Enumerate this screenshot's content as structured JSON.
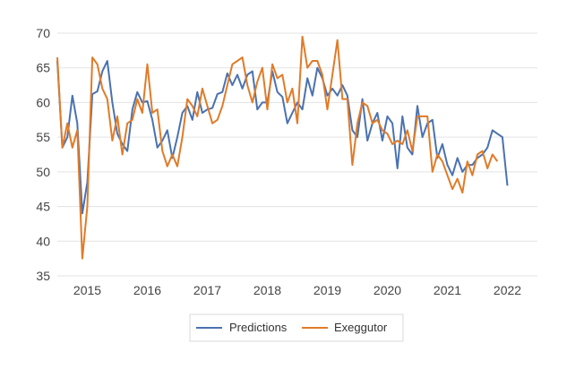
{
  "chart_data": {
    "type": "line",
    "title": "",
    "xlabel": "",
    "ylabel": "",
    "ylim": [
      35,
      70
    ],
    "yticks": [
      35,
      40,
      45,
      50,
      55,
      60,
      65,
      70
    ],
    "xlim": [
      "2014-07",
      "2022-07"
    ],
    "xtick_labels": [
      "2015",
      "2016",
      "2017",
      "2018",
      "2019",
      "2020",
      "2021",
      "2022"
    ],
    "grid": true,
    "legend_position": "bottom",
    "colors": {
      "Predictions": "#4a72b0",
      "Exeggutor": "#e07b28"
    },
    "series": [
      {
        "name": "Predictions",
        "color": "#4a72b0",
        "points": [
          [
            "2014-07",
            66
          ],
          [
            "2014-08",
            53.5
          ],
          [
            "2014-09",
            55
          ],
          [
            "2014-10",
            61
          ],
          [
            "2014-11",
            57
          ],
          [
            "2014-12",
            44
          ],
          [
            "2015-01",
            48.5
          ],
          [
            "2015-02",
            61.2
          ],
          [
            "2015-03",
            61.6
          ],
          [
            "2015-04",
            64.5
          ],
          [
            "2015-05",
            66
          ],
          [
            "2015-06",
            60
          ],
          [
            "2015-07",
            55.5
          ],
          [
            "2015-08",
            54
          ],
          [
            "2015-09",
            53
          ],
          [
            "2015-10",
            59
          ],
          [
            "2015-11",
            61.5
          ],
          [
            "2015-12",
            60
          ],
          [
            "2016-01",
            60.2
          ],
          [
            "2016-02",
            57.5
          ],
          [
            "2016-03",
            53.5
          ],
          [
            "2016-04",
            54.5
          ],
          [
            "2016-05",
            56
          ],
          [
            "2016-06",
            52
          ],
          [
            "2016-07",
            55
          ],
          [
            "2016-08",
            58.5
          ],
          [
            "2016-09",
            59.5
          ],
          [
            "2016-10",
            57.5
          ],
          [
            "2016-11",
            61.5
          ],
          [
            "2016-12",
            58.5
          ],
          [
            "2017-01",
            59
          ],
          [
            "2017-02",
            59.2
          ],
          [
            "2017-03",
            61.2
          ],
          [
            "2017-04",
            61.5
          ],
          [
            "2017-05",
            64.2
          ],
          [
            "2017-06",
            62.5
          ],
          [
            "2017-07",
            64
          ],
          [
            "2017-08",
            62
          ],
          [
            "2017-09",
            64
          ],
          [
            "2017-10",
            64.5
          ],
          [
            "2017-11",
            59
          ],
          [
            "2017-12",
            60
          ],
          [
            "2018-01",
            60
          ],
          [
            "2018-02",
            64.5
          ],
          [
            "2018-03",
            61.5
          ],
          [
            "2018-04",
            60.8
          ],
          [
            "2018-05",
            57
          ],
          [
            "2018-06",
            58.5
          ],
          [
            "2018-07",
            60
          ],
          [
            "2018-08",
            59
          ],
          [
            "2018-09",
            63.5
          ],
          [
            "2018-10",
            61
          ],
          [
            "2018-11",
            65
          ],
          [
            "2018-12",
            63.5
          ],
          [
            "2019-01",
            61
          ],
          [
            "2019-02",
            62
          ],
          [
            "2019-03",
            61
          ],
          [
            "2019-04",
            62.5
          ],
          [
            "2019-05",
            61
          ],
          [
            "2019-06",
            56
          ],
          [
            "2019-07",
            55
          ],
          [
            "2019-08",
            60.5
          ],
          [
            "2019-09",
            54.5
          ],
          [
            "2019-10",
            57
          ],
          [
            "2019-11",
            58.5
          ],
          [
            "2019-12",
            54.5
          ],
          [
            "2020-01",
            58
          ],
          [
            "2020-02",
            57
          ],
          [
            "2020-03",
            50.5
          ],
          [
            "2020-04",
            58
          ],
          [
            "2020-05",
            53.5
          ],
          [
            "2020-06",
            52.5
          ],
          [
            "2020-07",
            59.5
          ],
          [
            "2020-08",
            55
          ],
          [
            "2020-09",
            57
          ],
          [
            "2020-10",
            57.5
          ],
          [
            "2020-11",
            52
          ],
          [
            "2020-12",
            54
          ],
          [
            "2021-01",
            51
          ],
          [
            "2021-02",
            49.5
          ],
          [
            "2021-03",
            52
          ],
          [
            "2021-04",
            50
          ],
          [
            "2021-05",
            51
          ],
          [
            "2021-06",
            51
          ],
          [
            "2021-07",
            52
          ],
          [
            "2021-08",
            52.5
          ],
          [
            "2021-09",
            53.5
          ],
          [
            "2021-10",
            56
          ],
          [
            "2021-11",
            55.5
          ],
          [
            "2021-12",
            55
          ],
          [
            "2022-01",
            48
          ]
        ]
      },
      {
        "name": "Exeggutor",
        "color": "#e07b28",
        "points": [
          [
            "2014-07",
            66.5
          ],
          [
            "2014-08",
            53.5
          ],
          [
            "2014-09",
            57
          ],
          [
            "2014-10",
            53.5
          ],
          [
            "2014-11",
            56
          ],
          [
            "2014-12",
            37.5
          ],
          [
            "2015-01",
            45
          ],
          [
            "2015-02",
            66.5
          ],
          [
            "2015-03",
            65.5
          ],
          [
            "2015-04",
            62
          ],
          [
            "2015-05",
            60.5
          ],
          [
            "2015-06",
            54.5
          ],
          [
            "2015-07",
            58
          ],
          [
            "2015-08",
            52.5
          ],
          [
            "2015-09",
            57
          ],
          [
            "2015-10",
            57.5
          ],
          [
            "2015-11",
            60.5
          ],
          [
            "2015-12",
            58.5
          ],
          [
            "2016-01",
            65.5
          ],
          [
            "2016-02",
            58.5
          ],
          [
            "2016-03",
            59
          ],
          [
            "2016-04",
            53
          ],
          [
            "2016-05",
            50.8
          ],
          [
            "2016-06",
            52.5
          ],
          [
            "2016-07",
            50.8
          ],
          [
            "2016-08",
            55
          ],
          [
            "2016-09",
            60.5
          ],
          [
            "2016-10",
            59.5
          ],
          [
            "2016-11",
            58
          ],
          [
            "2016-12",
            62
          ],
          [
            "2017-01",
            59.5
          ],
          [
            "2017-02",
            57
          ],
          [
            "2017-03",
            57.5
          ],
          [
            "2017-04",
            59.5
          ],
          [
            "2017-05",
            62.5
          ],
          [
            "2017-06",
            65.5
          ],
          [
            "2017-07",
            66
          ],
          [
            "2017-08",
            66.5
          ],
          [
            "2017-09",
            62.5
          ],
          [
            "2017-10",
            60
          ],
          [
            "2017-11",
            63
          ],
          [
            "2017-12",
            65
          ],
          [
            "2018-01",
            59
          ],
          [
            "2018-02",
            65.5
          ],
          [
            "2018-03",
            63.5
          ],
          [
            "2018-04",
            64
          ],
          [
            "2018-05",
            60
          ],
          [
            "2018-06",
            62
          ],
          [
            "2018-07",
            57
          ],
          [
            "2018-08",
            69.5
          ],
          [
            "2018-09",
            65
          ],
          [
            "2018-10",
            66
          ],
          [
            "2018-11",
            66
          ],
          [
            "2018-12",
            64
          ],
          [
            "2019-01",
            59
          ],
          [
            "2019-02",
            64
          ],
          [
            "2019-03",
            69
          ],
          [
            "2019-04",
            60.5
          ],
          [
            "2019-05",
            60.5
          ],
          [
            "2019-06",
            51
          ],
          [
            "2019-07",
            57
          ],
          [
            "2019-08",
            60
          ],
          [
            "2019-09",
            59.5
          ],
          [
            "2019-10",
            57
          ],
          [
            "2019-11",
            57.5
          ],
          [
            "2019-12",
            56
          ],
          [
            "2020-01",
            55.5
          ],
          [
            "2020-02",
            54
          ],
          [
            "2020-03",
            54.5
          ],
          [
            "2020-04",
            54
          ],
          [
            "2020-05",
            56
          ],
          [
            "2020-06",
            53
          ],
          [
            "2020-07",
            58
          ],
          [
            "2020-08",
            58
          ],
          [
            "2020-09",
            58
          ],
          [
            "2020-10",
            50
          ],
          [
            "2020-11",
            52.5
          ],
          [
            "2020-12",
            51.5
          ],
          [
            "2021-01",
            49.5
          ],
          [
            "2021-02",
            47.5
          ],
          [
            "2021-03",
            49
          ],
          [
            "2021-04",
            47
          ],
          [
            "2021-05",
            51.5
          ],
          [
            "2021-06",
            49.5
          ],
          [
            "2021-07",
            52.5
          ],
          [
            "2021-08",
            53
          ],
          [
            "2021-09",
            50.5
          ],
          [
            "2021-10",
            52.5
          ],
          [
            "2021-11",
            51.5
          ]
        ]
      }
    ]
  }
}
